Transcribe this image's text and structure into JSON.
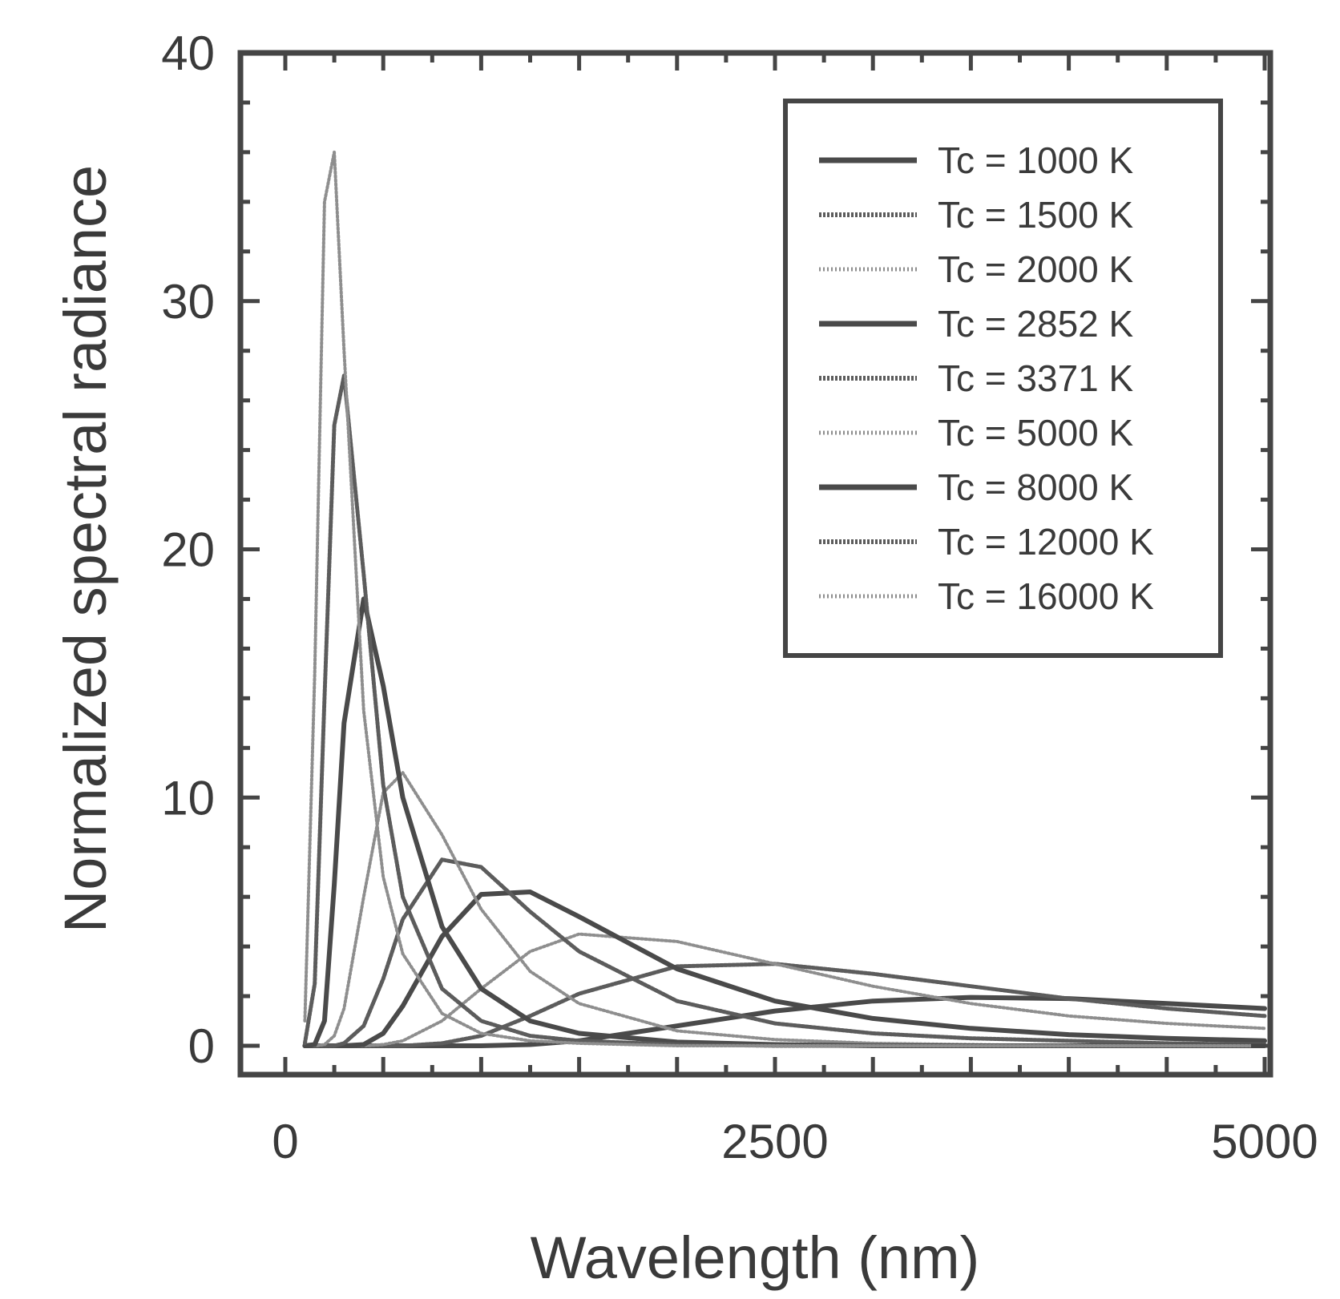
{
  "chart_data": {
    "type": "line",
    "title": "",
    "xlabel": "Wavelength (nm)",
    "ylabel": "Normalized spectral radiance",
    "xlim": [
      -200,
      5000
    ],
    "ylim": [
      -1,
      40
    ],
    "x_ticks": [
      {
        "value": 0,
        "label": "0"
      },
      {
        "value": 2500,
        "label": "2500"
      },
      {
        "value": 5000,
        "label": "5000"
      }
    ],
    "y_ticks": [
      {
        "value": 0,
        "label": "0"
      },
      {
        "value": 10,
        "label": "10"
      },
      {
        "value": 20,
        "label": "20"
      },
      {
        "value": 30,
        "label": "30"
      },
      {
        "value": 40,
        "label": "40"
      }
    ],
    "grid": false,
    "legend_position": "top-right",
    "x": [
      100,
      150,
      200,
      250,
      300,
      400,
      500,
      600,
      800,
      1000,
      1250,
      1500,
      2000,
      2500,
      3000,
      3500,
      4000,
      4500,
      5000
    ],
    "series": [
      {
        "name": "Tc = 1000 K",
        "style": "solid",
        "color": "#4a4a4a",
        "values": [
          0,
          0,
          0,
          0,
          0,
          0,
          0,
          0,
          0,
          0,
          0.05,
          0.2,
          0.8,
          1.4,
          1.8,
          1.95,
          1.9,
          1.7,
          1.5
        ]
      },
      {
        "name": "Tc = 1500 K",
        "style": "dense",
        "color": "#5c5c5c",
        "values": [
          0,
          0,
          0,
          0,
          0,
          0,
          0,
          0,
          0.1,
          0.4,
          1.2,
          2.1,
          3.2,
          3.3,
          2.9,
          2.4,
          1.9,
          1.5,
          1.2
        ]
      },
      {
        "name": "Tc = 2000 K",
        "style": "dotted",
        "color": "#8e8e8e",
        "values": [
          0,
          0,
          0,
          0,
          0,
          0,
          0.05,
          0.2,
          1.0,
          2.3,
          3.8,
          4.5,
          4.2,
          3.3,
          2.4,
          1.7,
          1.2,
          0.9,
          0.7
        ]
      },
      {
        "name": "Tc = 2852 K",
        "style": "solid",
        "color": "#4a4a4a",
        "values": [
          0,
          0,
          0,
          0,
          0,
          0.05,
          0.5,
          1.6,
          4.4,
          6.1,
          6.2,
          5.2,
          3.1,
          1.8,
          1.1,
          0.7,
          0.45,
          0.3,
          0.2
        ]
      },
      {
        "name": "Tc = 3371 K",
        "style": "dense",
        "color": "#5c5c5c",
        "values": [
          0,
          0,
          0,
          0,
          0.1,
          0.8,
          2.7,
          5.1,
          7.5,
          7.2,
          5.4,
          3.8,
          1.8,
          0.9,
          0.5,
          0.3,
          0.2,
          0.1,
          0.05
        ]
      },
      {
        "name": "Tc = 5000 K",
        "style": "dotted",
        "color": "#8e8e8e",
        "values": [
          0,
          0,
          0.05,
          0.4,
          1.5,
          6.0,
          10.2,
          11.0,
          8.5,
          5.5,
          3.0,
          1.7,
          0.6,
          0.25,
          0.1,
          0.05,
          0,
          0,
          0
        ]
      },
      {
        "name": "Tc = 8000 K",
        "style": "solid",
        "color": "#4a4a4a",
        "values": [
          0,
          0.05,
          1.0,
          6.5,
          13.0,
          18.0,
          14.5,
          10.0,
          4.8,
          2.3,
          1.0,
          0.5,
          0.15,
          0.05,
          0,
          0,
          0,
          0,
          0
        ]
      },
      {
        "name": "Tc = 12000 K",
        "style": "dense",
        "color": "#5c5c5c",
        "values": [
          0.1,
          2.5,
          14.0,
          25.0,
          27.0,
          19.0,
          10.5,
          6.0,
          2.3,
          1.0,
          0.4,
          0.2,
          0.05,
          0,
          0,
          0,
          0,
          0,
          0
        ]
      },
      {
        "name": "Tc = 16000 K",
        "style": "dotted",
        "color": "#8e8e8e",
        "values": [
          1.0,
          15.0,
          34.0,
          36.0,
          28.0,
          13.5,
          6.8,
          3.7,
          1.3,
          0.5,
          0.2,
          0.1,
          0,
          0,
          0,
          0,
          0,
          0,
          0
        ]
      }
    ]
  }
}
